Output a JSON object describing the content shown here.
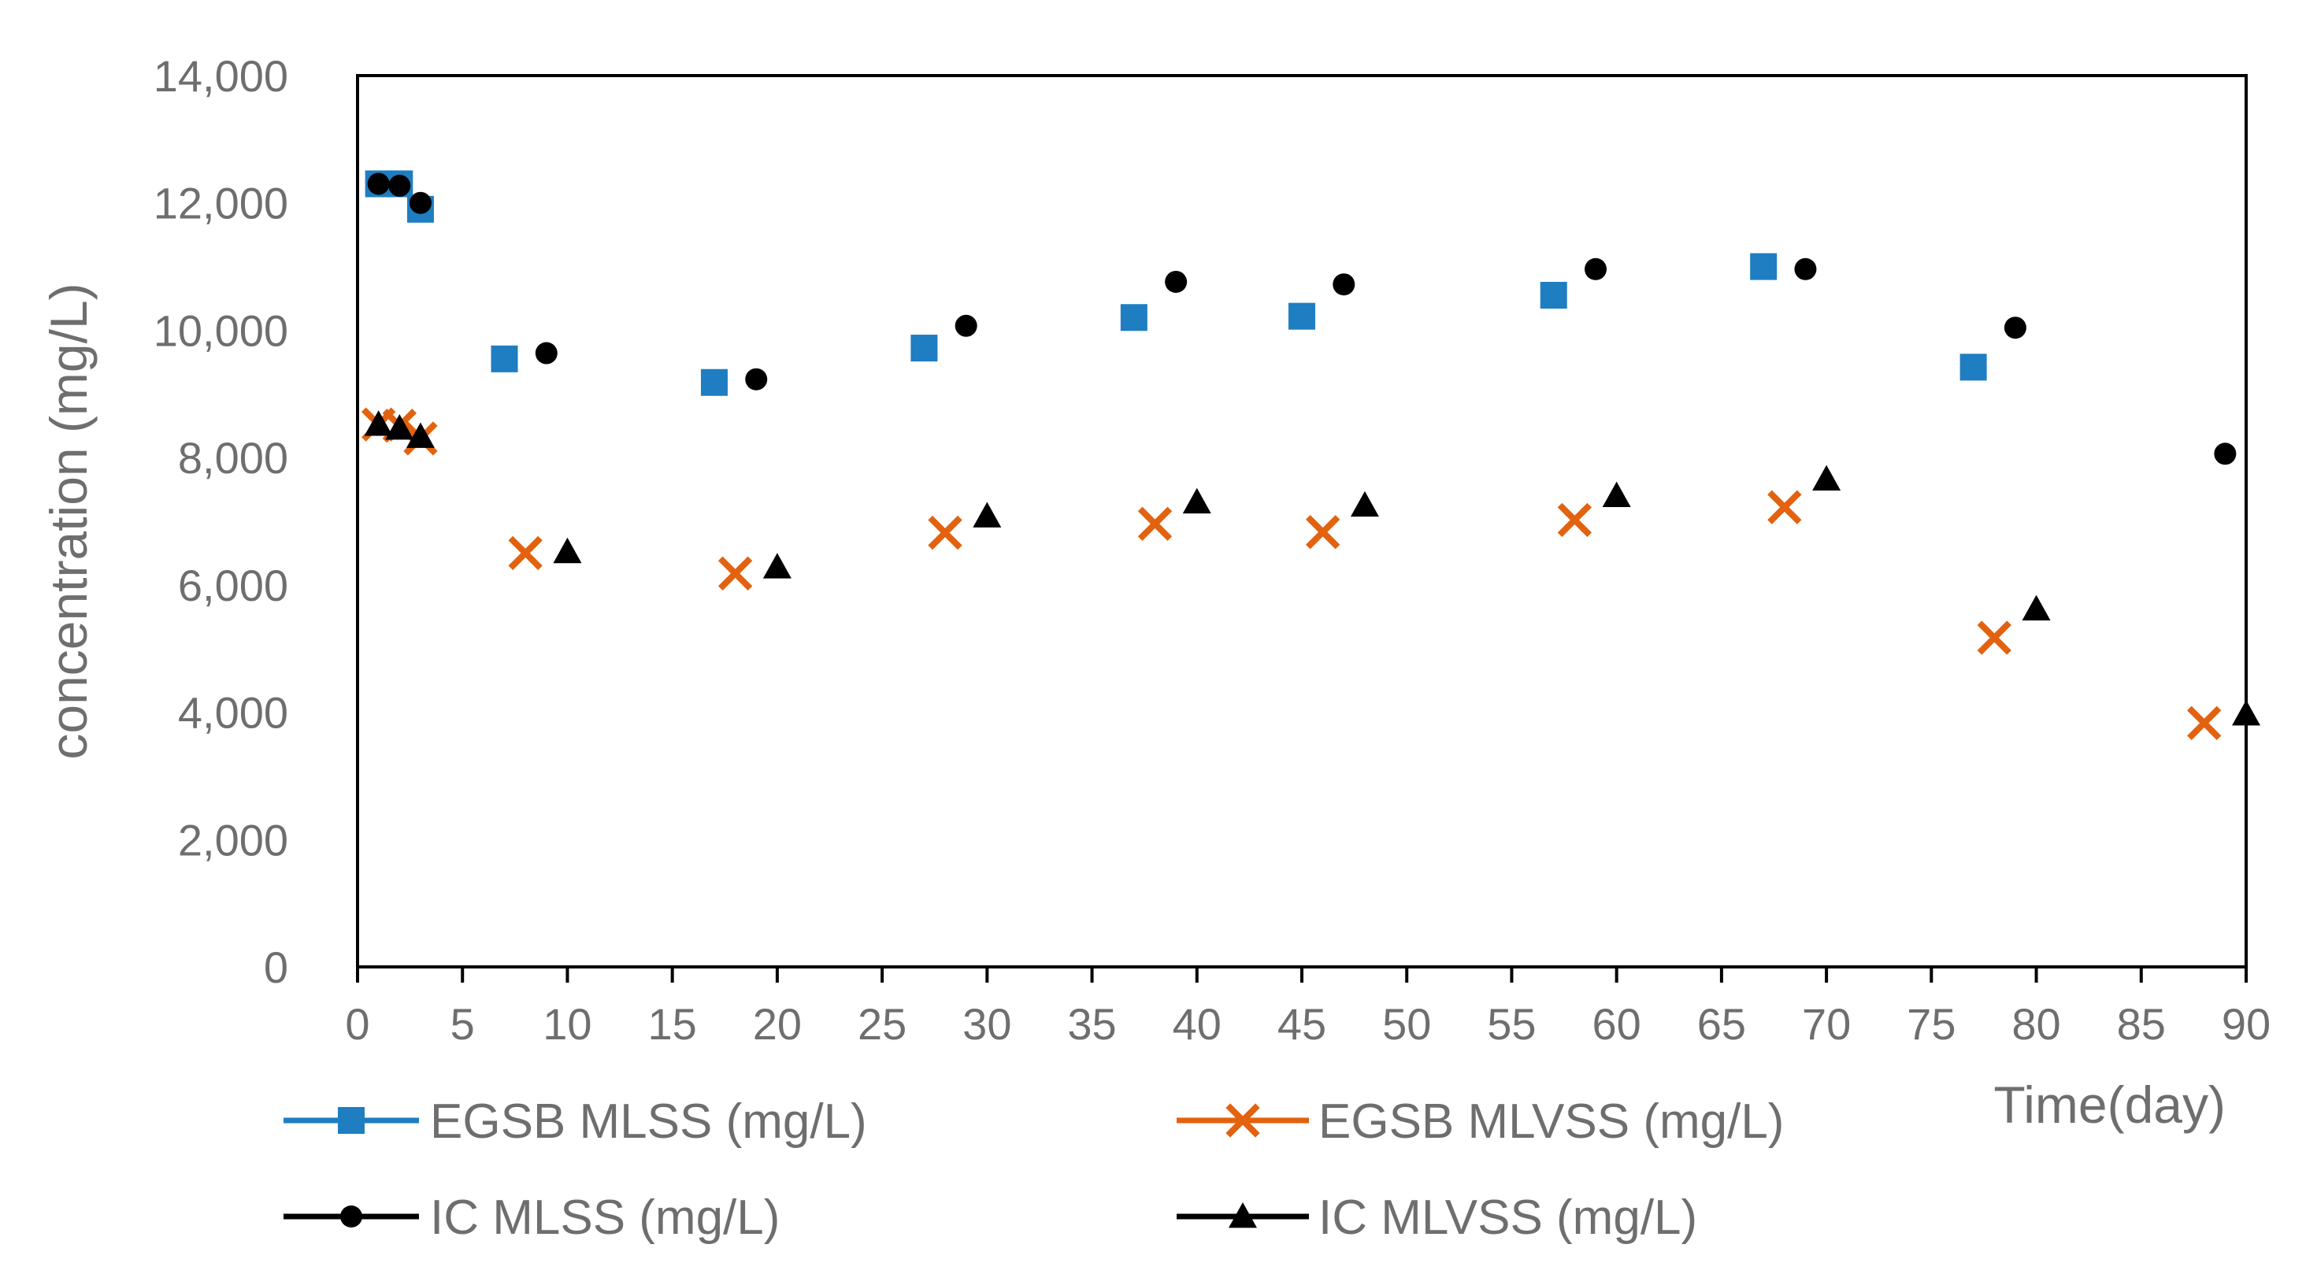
{
  "chart_data": {
    "type": "scatter",
    "title": "",
    "xlabel": "Time(day)",
    "ylabel": "concentration (mg/L)",
    "xlim": [
      0,
      90
    ],
    "ylim": [
      0,
      14000
    ],
    "x_ticks": [
      0,
      5,
      10,
      15,
      20,
      25,
      30,
      35,
      40,
      45,
      50,
      55,
      60,
      65,
      70,
      75,
      80,
      85,
      90
    ],
    "x_tick_labels": [
      "0",
      "5",
      "10",
      "15",
      "20",
      "25",
      "30",
      "35",
      "40",
      "45",
      "50",
      "55",
      "60",
      "65",
      "70",
      "75",
      "80",
      "85",
      "90"
    ],
    "y_ticks": [
      0,
      2000,
      4000,
      6000,
      8000,
      10000,
      12000,
      14000
    ],
    "y_tick_labels": [
      "0",
      "2,000",
      "4,000",
      "6,000",
      "8,000",
      "10,000",
      "12,000",
      "14,000"
    ],
    "grid": false,
    "legend_position": "bottom",
    "series": [
      {
        "name": "EGSB MLSS (mg/L)",
        "marker": "square",
        "color": "#1f7dc1",
        "x": [
          1,
          2,
          3,
          7,
          17,
          27,
          37,
          45,
          57,
          67,
          77
        ],
        "y": [
          12300,
          12300,
          11900,
          9550,
          9180,
          9720,
          10200,
          10220,
          10550,
          11000,
          9420
        ]
      },
      {
        "name": "EGSB MLVSS (mg/L)",
        "marker": "x",
        "color": "#e2620f",
        "x": [
          1,
          2,
          3,
          8,
          18,
          28,
          38,
          46,
          58,
          68,
          78,
          88
        ],
        "y": [
          8520,
          8500,
          8300,
          6500,
          6180,
          6820,
          6960,
          6830,
          7020,
          7220,
          5170,
          3830
        ]
      },
      {
        "name": "IC MLSS (mg/L)",
        "marker": "circle",
        "color": "#000000",
        "x": [
          1,
          2,
          3,
          9,
          19,
          29,
          39,
          47,
          59,
          69,
          79,
          89
        ],
        "y": [
          12300,
          12270,
          12000,
          9640,
          9230,
          10070,
          10760,
          10720,
          10960,
          10960,
          10040,
          8060
        ]
      },
      {
        "name": "IC MLVSS (mg/L)",
        "marker": "triangle",
        "color": "#000000",
        "x": [
          1,
          2,
          3,
          10,
          20,
          30,
          40,
          48,
          60,
          70,
          80,
          90
        ],
        "y": [
          8520,
          8460,
          8330,
          6520,
          6280,
          7080,
          7300,
          7250,
          7400,
          7660,
          5620,
          3970
        ]
      }
    ]
  }
}
